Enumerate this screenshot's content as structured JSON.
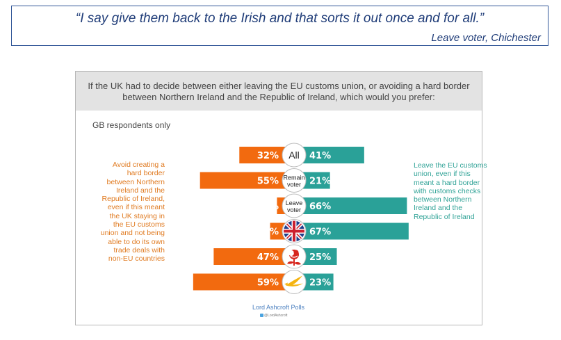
{
  "quote": {
    "text": "“I say give them back to the Irish and that sorts it out once and for all.”",
    "attribution": "Leave voter, Chichester"
  },
  "panel": {
    "question": "If the UK had to decide between either leaving the EU customs union, or avoiding a hard border between Northern Ireland and the Republic of Ireland, which would you prefer:",
    "subtitle": "GB respondents only",
    "source": "Lord Ashcroft Polls",
    "twitter": "@LordAshcroft"
  },
  "legend": {
    "left": "Avoid creating a hard border between Northern Ireland and the Republic of Ireland, even if this meant the UK staying in the EU customs union and not being able to do its own trade deals with non-EU countries",
    "right": "Leave the EU customs union, even if this meant a hard border with customs checks between Northern Ireland and the Republic of Ireland"
  },
  "colors": {
    "avoid_border": "#f26a0f",
    "leave_union": "#2aa198",
    "quote_border": "#2f5597",
    "header_bg": "#e3e3e3"
  },
  "chart_data": {
    "type": "bar",
    "orientation": "diverging-horizontal",
    "categories": [
      "All",
      "Remain voter",
      "Leave voter",
      "Conservative",
      "Labour",
      "Liberal Democrat"
    ],
    "category_display": [
      {
        "kind": "text",
        "text": "All",
        "icon": ""
      },
      {
        "kind": "text",
        "text": "Remain voter",
        "icon": ""
      },
      {
        "kind": "text",
        "text": "Leave voter",
        "icon": ""
      },
      {
        "kind": "icon",
        "text": "",
        "icon": "union-jack-icon"
      },
      {
        "kind": "icon",
        "text": "",
        "icon": "red-rose-icon"
      },
      {
        "kind": "icon",
        "text": "",
        "icon": "libdem-bird-icon"
      }
    ],
    "series": [
      {
        "name": "Avoid creating a hard border",
        "color": "#f26a0f",
        "values": [
          32,
          55,
          10,
          14,
          47,
          59
        ]
      },
      {
        "name": "Leave the EU customs union",
        "color": "#2aa198",
        "values": [
          41,
          21,
          66,
          67,
          25,
          23
        ]
      }
    ],
    "unit": "%"
  }
}
